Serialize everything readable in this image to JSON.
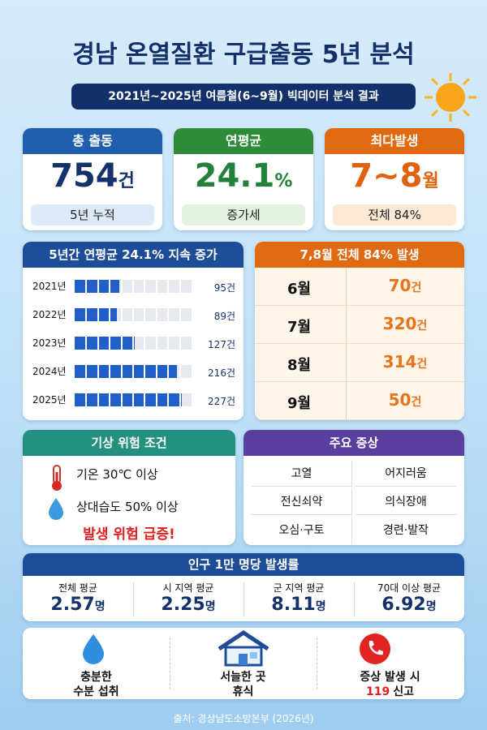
{
  "header": {
    "title": "경남 온열질환 구급출동 5년 분석",
    "subtitle": "2021년~2025년 여름철(6~9월) 빅데이터 분석 결과"
  },
  "summary_cards": [
    {
      "title": "총 출동",
      "value": "754",
      "unit": "건",
      "note": "5년 누적",
      "color": "#1f5fae",
      "tint": "#dceafa",
      "text": "#15316b"
    },
    {
      "title": "연평균",
      "value": "24.1",
      "unit": "%",
      "note": "증가세",
      "color": "#2e8b3a",
      "tint": "#e2f1e0",
      "text": "#22823a"
    },
    {
      "title": "최다발생",
      "value": "7~8",
      "unit": "월",
      "note": "전체 84%",
      "color": "#e06a12",
      "tint": "#fbe9d6",
      "text": "#e0620e"
    }
  ],
  "yearly": {
    "title": "5년간 연평균 24.1% 지속 증가",
    "rows": [
      {
        "year": "2021년",
        "value": 95,
        "label": "95건"
      },
      {
        "year": "2022년",
        "value": 89,
        "label": "89건"
      },
      {
        "year": "2023년",
        "value": 127,
        "label": "127건"
      },
      {
        "year": "2024년",
        "value": 216,
        "label": "216건"
      },
      {
        "year": "2025년",
        "value": 227,
        "label": "227건"
      }
    ]
  },
  "monthly": {
    "title": "7,8월 전체 84% 발생",
    "rows": [
      {
        "month": "6월",
        "value": "70",
        "unit": "건"
      },
      {
        "month": "7월",
        "value": "320",
        "unit": "건"
      },
      {
        "month": "8월",
        "value": "314",
        "unit": "건"
      },
      {
        "month": "9월",
        "value": "50",
        "unit": "건"
      }
    ]
  },
  "weather": {
    "title": "기상 위험 조건",
    "items": [
      "기온 30℃ 이상",
      "상대습도 50% 이상"
    ],
    "warning": "발생 위험 급증!"
  },
  "symptoms": {
    "title": "주요 증상",
    "items": [
      "고열",
      "어지러움",
      "전신쇠약",
      "의식장애",
      "오심·구토",
      "경련·발작"
    ]
  },
  "rates": {
    "title": "인구 1만 명당 발생률",
    "items": [
      {
        "label": "전체 평균",
        "value": "2.57",
        "unit": "명"
      },
      {
        "label": "시 지역 평균",
        "value": "2.25",
        "unit": "명"
      },
      {
        "label": "군 지역 평균",
        "value": "8.11",
        "unit": "명"
      },
      {
        "label": "70대 이상 평균",
        "value": "6.92",
        "unit": "명"
      }
    ]
  },
  "tips": [
    {
      "lines": [
        "충분한",
        "수분 섭취"
      ]
    },
    {
      "lines": [
        "서늘한 곳",
        "휴식"
      ]
    },
    {
      "lines": [
        "증상 발생 시"
      ],
      "emphasis": "119",
      "suffix": "신고"
    }
  ],
  "footer": "출처: 경상남도소방본부 (2026년)"
}
